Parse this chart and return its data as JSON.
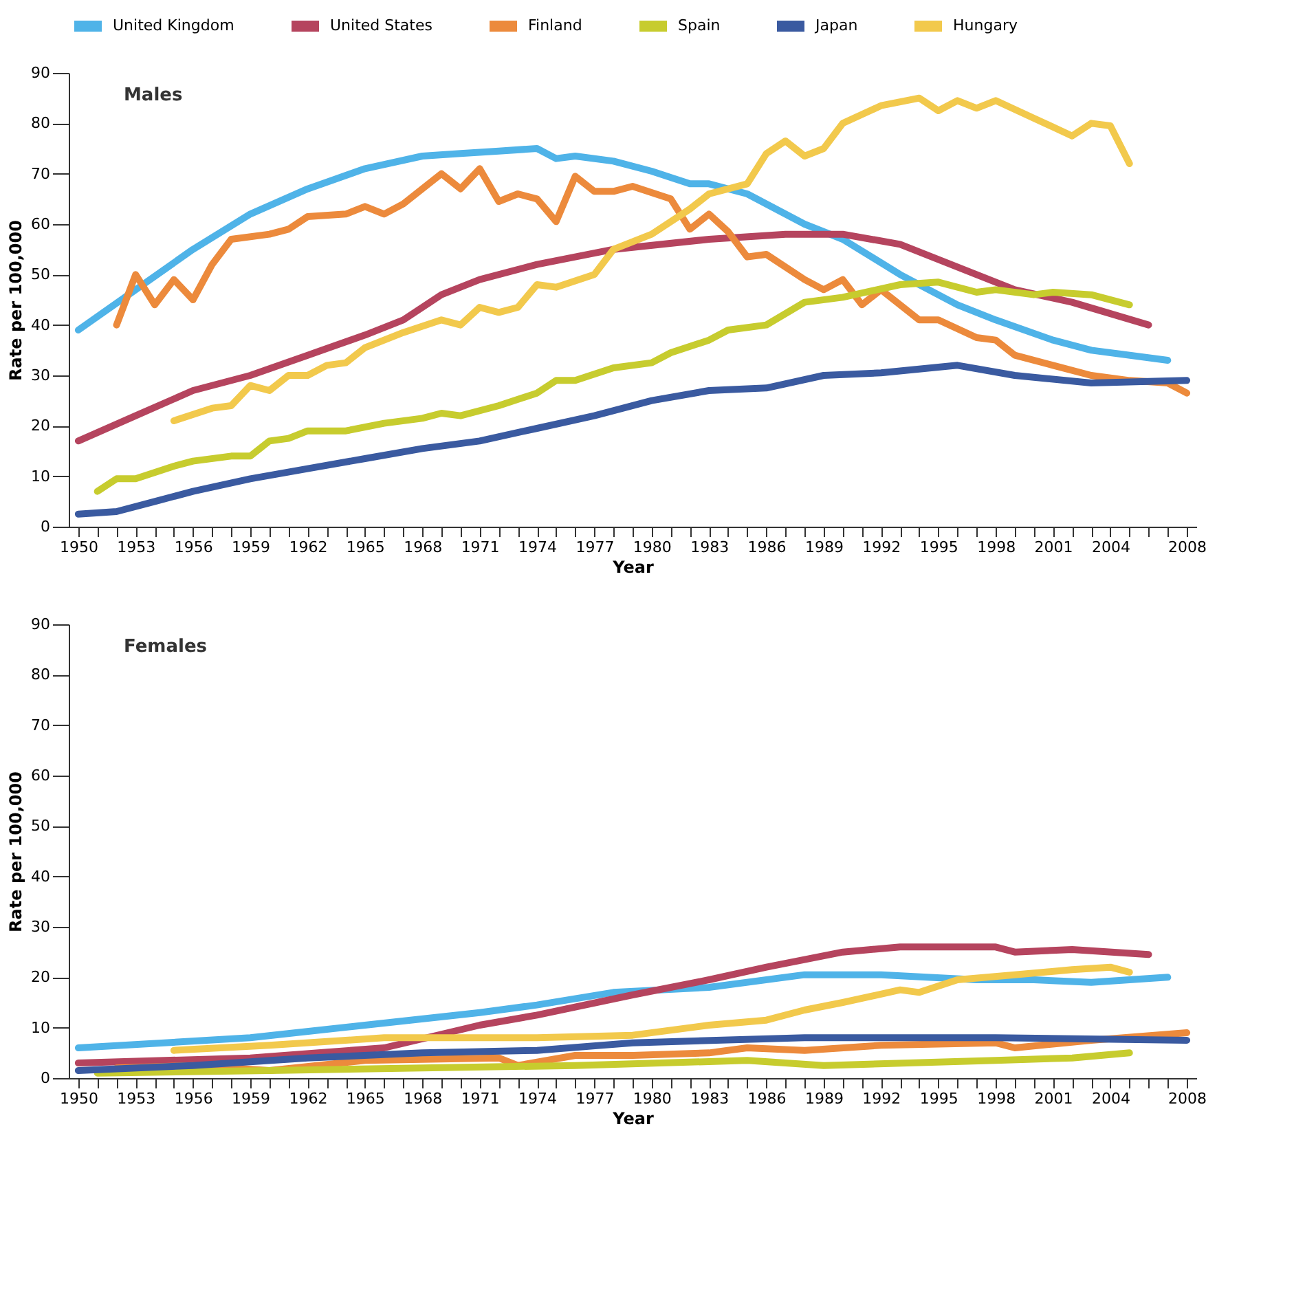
{
  "chart_data": [
    {
      "type": "line",
      "title": "Males",
      "xlabel": "Year",
      "ylabel": "Rate per 100,000",
      "xlim": [
        1949.5,
        2008.5
      ],
      "ylim": [
        0,
        90
      ],
      "yticks": [
        0,
        10,
        20,
        30,
        40,
        50,
        60,
        70,
        80,
        90
      ],
      "grid": false,
      "legend": "top",
      "xticks": [
        1950,
        {
          "value": 1951,
          "label": null
        },
        {
          "value": 1952,
          "label": null
        },
        1953,
        {
          "value": 1954,
          "label": null
        },
        {
          "value": 1955,
          "label": null
        },
        1956,
        {
          "value": 1957,
          "label": null
        },
        {
          "value": 1958,
          "label": null
        },
        1959,
        {
          "value": 1960,
          "label": null
        },
        {
          "value": 1961,
          "label": null
        },
        1962,
        {
          "value": 1963,
          "label": null
        },
        {
          "value": 1964,
          "label": null
        },
        1965,
        {
          "value": 1966,
          "label": null
        },
        {
          "value": 1967,
          "label": null
        },
        1968,
        {
          "value": 1969,
          "label": null
        },
        {
          "value": 1970,
          "label": null
        },
        1971,
        {
          "value": 1972,
          "label": null
        },
        {
          "value": 1973,
          "label": null
        },
        1974,
        {
          "value": 1975,
          "label": null
        },
        {
          "value": 1976,
          "label": null
        },
        1977,
        {
          "value": 1978,
          "label": null
        },
        {
          "value": 1979,
          "label": null
        },
        1980,
        {
          "value": 1981,
          "label": null
        },
        {
          "value": 1982,
          "label": null
        },
        1983,
        {
          "value": 1984,
          "label": null
        },
        {
          "value": 1985,
          "label": null
        },
        1986,
        {
          "value": 1987,
          "label": null
        },
        {
          "value": 1988,
          "label": null
        },
        1989,
        {
          "value": 1990,
          "label": null
        },
        {
          "value": 1991,
          "label": null
        },
        1992,
        {
          "value": 1993,
          "label": null
        },
        {
          "value": 1994,
          "label": null
        },
        1995,
        {
          "value": 1996,
          "label": null
        },
        {
          "value": 1997,
          "label": null
        },
        1998,
        {
          "value": 1999,
          "label": null
        },
        {
          "value": 2000,
          "label": null
        },
        2001,
        {
          "value": 2002,
          "label": null
        },
        {
          "value": 2003,
          "label": null
        },
        2004,
        {
          "value": 2005,
          "label": null
        },
        {
          "value": 2006,
          "label": null
        },
        {
          "value": 2007,
          "label": null
        },
        2008
      ],
      "series": [
        {
          "name": "United Kingdom",
          "color": "#4fb3e8",
          "x": [
            1950,
            1953,
            1956,
            1959,
            1962,
            1965,
            1968,
            1970,
            1972,
            1974,
            1975,
            1976,
            1978,
            1980,
            1982,
            1983,
            1985,
            1988,
            1990,
            1993,
            1996,
            1998,
            2001,
            2003,
            2007
          ],
          "values": [
            39,
            47,
            55,
            62,
            67,
            71,
            73.5,
            74,
            74.5,
            75,
            73,
            73.5,
            72.5,
            70.5,
            68,
            68,
            66,
            60,
            57,
            50,
            44,
            41,
            37,
            35,
            33
          ]
        },
        {
          "name": "United States",
          "color": "#b5445e",
          "x": [
            1950,
            1953,
            1956,
            1959,
            1962,
            1965,
            1967,
            1969,
            1971,
            1974,
            1978,
            1983,
            1987,
            1990,
            1993,
            1996,
            1999,
            2002,
            2006
          ],
          "values": [
            17,
            22,
            27,
            30,
            34,
            38,
            41,
            46,
            49,
            52,
            55,
            57,
            58,
            58,
            56,
            51.5,
            47,
            44.5,
            40
          ]
        },
        {
          "name": "Finland",
          "color": "#ec8a3c",
          "x": [
            1952,
            1953,
            1954,
            1955,
            1956,
            1957,
            1958,
            1960,
            1961,
            1962,
            1964,
            1965,
            1966,
            1967,
            1969,
            1970,
            1971,
            1972,
            1973,
            1974,
            1975,
            1976,
            1977,
            1978,
            1979,
            1981,
            1982,
            1983,
            1984,
            1985,
            1986,
            1988,
            1989,
            1990,
            1991,
            1992,
            1994,
            1995,
            1997,
            1998,
            1999,
            2001,
            2003,
            2005,
            2007,
            2008
          ],
          "values": [
            40,
            50,
            44,
            49,
            45,
            52,
            57,
            58,
            59,
            61.5,
            62,
            63.5,
            62,
            64,
            70,
            67,
            71,
            64.5,
            66,
            65,
            60.5,
            69.5,
            66.5,
            66.5,
            67.5,
            65,
            59,
            62,
            58.5,
            53.5,
            54,
            49,
            47,
            49,
            44,
            47,
            41,
            41,
            37.5,
            37,
            34,
            32,
            30,
            29,
            28.5,
            26.5
          ]
        },
        {
          "name": "Spain",
          "color": "#c7cc2e",
          "x": [
            1951,
            1952,
            1953,
            1955,
            1956,
            1958,
            1959,
            1960,
            1961,
            1962,
            1964,
            1966,
            1968,
            1969,
            1970,
            1972,
            1974,
            1975,
            1976,
            1978,
            1980,
            1981,
            1983,
            1984,
            1986,
            1988,
            1990,
            1993,
            1995,
            1997,
            1998,
            2000,
            2001,
            2003,
            2005
          ],
          "values": [
            7,
            9.5,
            9.5,
            12,
            13,
            14,
            14,
            17,
            17.5,
            19,
            19,
            20.5,
            21.5,
            22.5,
            22,
            24,
            26.5,
            29,
            29,
            31.5,
            32.5,
            34.5,
            37,
            39,
            40,
            44.5,
            45.5,
            48,
            48.5,
            46.5,
            47,
            46,
            46.5,
            46,
            44
          ]
        },
        {
          "name": "Japan",
          "color": "#3a5aa0",
          "x": [
            1950,
            1952,
            1954,
            1956,
            1959,
            1962,
            1965,
            1968,
            1971,
            1974,
            1977,
            1980,
            1983,
            1986,
            1989,
            1992,
            1996,
            1999,
            2003,
            2008
          ],
          "values": [
            2.5,
            3,
            5,
            7,
            9.5,
            11.5,
            13.5,
            15.5,
            17,
            19.5,
            22,
            25,
            27,
            27.5,
            30,
            30.5,
            32,
            30,
            28.5,
            29
          ]
        },
        {
          "name": "Hungary",
          "color": "#f2c94c",
          "x": [
            1955,
            1957,
            1958,
            1959,
            1960,
            1961,
            1962,
            1963,
            1964,
            1965,
            1967,
            1969,
            1970,
            1971,
            1972,
            1973,
            1974,
            1975,
            1977,
            1978,
            1980,
            1982,
            1983,
            1985,
            1986,
            1987,
            1988,
            1989,
            1990,
            1992,
            1994,
            1995,
            1996,
            1997,
            1998,
            2000,
            2002,
            2003,
            2004,
            2005
          ],
          "values": [
            21,
            23.5,
            24,
            28,
            27,
            30,
            30,
            32,
            32.5,
            35.5,
            38.5,
            41,
            40,
            43.5,
            42.5,
            43.5,
            48,
            47.5,
            50,
            55,
            58,
            63,
            66,
            68,
            74,
            76.5,
            73.5,
            75,
            80,
            83.5,
            85,
            82.5,
            84.5,
            83,
            84.5,
            81,
            77.5,
            80,
            79.5,
            72
          ]
        }
      ]
    },
    {
      "type": "line",
      "title": "Females",
      "xlabel": "Year",
      "ylabel": "Rate per 100,000",
      "xlim": [
        1949.5,
        2008.5
      ],
      "ylim": [
        0,
        90
      ],
      "yticks": [
        0,
        10,
        20,
        30,
        40,
        50,
        60,
        70,
        80,
        90
      ],
      "grid": false,
      "xticks": [
        1950,
        {
          "value": 1951,
          "label": null
        },
        {
          "value": 1952,
          "label": null
        },
        1953,
        {
          "value": 1954,
          "label": null
        },
        {
          "value": 1955,
          "label": null
        },
        1956,
        {
          "value": 1957,
          "label": null
        },
        {
          "value": 1958,
          "label": null
        },
        1959,
        {
          "value": 1960,
          "label": null
        },
        {
          "value": 1961,
          "label": null
        },
        1962,
        {
          "value": 1963,
          "label": null
        },
        {
          "value": 1964,
          "label": null
        },
        1965,
        {
          "value": 1966,
          "label": null
        },
        {
          "value": 1967,
          "label": null
        },
        1968,
        {
          "value": 1969,
          "label": null
        },
        {
          "value": 1970,
          "label": null
        },
        1971,
        {
          "value": 1972,
          "label": null
        },
        {
          "value": 1973,
          "label": null
        },
        1974,
        {
          "value": 1975,
          "label": null
        },
        {
          "value": 1976,
          "label": null
        },
        1977,
        {
          "value": 1978,
          "label": null
        },
        {
          "value": 1979,
          "label": null
        },
        1980,
        {
          "value": 1981,
          "label": null
        },
        {
          "value": 1982,
          "label": null
        },
        1983,
        {
          "value": 1984,
          "label": null
        },
        {
          "value": 1985,
          "label": null
        },
        1986,
        {
          "value": 1987,
          "label": null
        },
        {
          "value": 1988,
          "label": null
        },
        1989,
        {
          "value": 1990,
          "label": null
        },
        {
          "value": 1991,
          "label": null
        },
        1992,
        {
          "value": 1993,
          "label": null
        },
        {
          "value": 1994,
          "label": null
        },
        1995,
        {
          "value": 1996,
          "label": null
        },
        {
          "value": 1997,
          "label": null
        },
        1998,
        {
          "value": 1999,
          "label": null
        },
        {
          "value": 2000,
          "label": null
        },
        2001,
        {
          "value": 2002,
          "label": null
        },
        {
          "value": 2003,
          "label": null
        },
        2004,
        {
          "value": 2005,
          "label": null
        },
        {
          "value": 2006,
          "label": null
        },
        {
          "value": 2007,
          "label": null
        },
        2008
      ],
      "series": [
        {
          "color": "#4fb3e8",
          "x": [
            1950,
            1959,
            1965,
            1971,
            1974,
            1978,
            1983,
            1988,
            1992,
            1997,
            2000,
            2003,
            2007
          ],
          "values": [
            6,
            8,
            10.5,
            13,
            14.5,
            17,
            18,
            20.5,
            20.5,
            19.5,
            19.5,
            19,
            20
          ]
        },
        {
          "color": "#b5445e",
          "x": [
            1950,
            1959,
            1966,
            1971,
            1974,
            1979,
            1983,
            1986,
            1990,
            1993,
            1998,
            1999,
            2002,
            2006
          ],
          "values": [
            3,
            4,
            6,
            10.5,
            12.5,
            16.5,
            19.5,
            22,
            25,
            26,
            26,
            25,
            25.5,
            24.5
          ]
        },
        {
          "color": "#ec8a3c",
          "x": [
            1952,
            1956,
            1960,
            1965,
            1972,
            1973,
            1976,
            1979,
            1983,
            1985,
            1988,
            1992,
            1998,
            1999,
            2003,
            2008
          ],
          "values": [
            2,
            2.5,
            1.5,
            3.5,
            4,
            2.5,
            4.5,
            4.5,
            5,
            6,
            5.5,
            6.5,
            7,
            6,
            7.5,
            9
          ]
        },
        {
          "color": "#c7cc2e",
          "x": [
            1951,
            1960,
            1968,
            1976,
            1985,
            1989,
            1998,
            2002,
            2005
          ],
          "values": [
            1,
            1.5,
            2,
            2.5,
            3.5,
            2.5,
            3.5,
            4,
            5
          ]
        },
        {
          "color": "#3a5aa0",
          "x": [
            1950,
            1956,
            1962,
            1968,
            1974,
            1979,
            1988,
            1998,
            2008
          ],
          "values": [
            1.5,
            2.5,
            4,
            5,
            5.5,
            7,
            8,
            8,
            7.5
          ]
        },
        {
          "color": "#f2c94c",
          "x": [
            1955,
            1960,
            1966,
            1974,
            1979,
            1983,
            1986,
            1988,
            1990,
            1993,
            1994,
            1996,
            1999,
            2002,
            2004,
            2005
          ],
          "values": [
            5.5,
            6.5,
            8,
            8,
            8.5,
            10.5,
            11.5,
            13.5,
            15,
            17.5,
            17,
            19.5,
            20.5,
            21.5,
            22,
            21
          ]
        }
      ]
    }
  ]
}
